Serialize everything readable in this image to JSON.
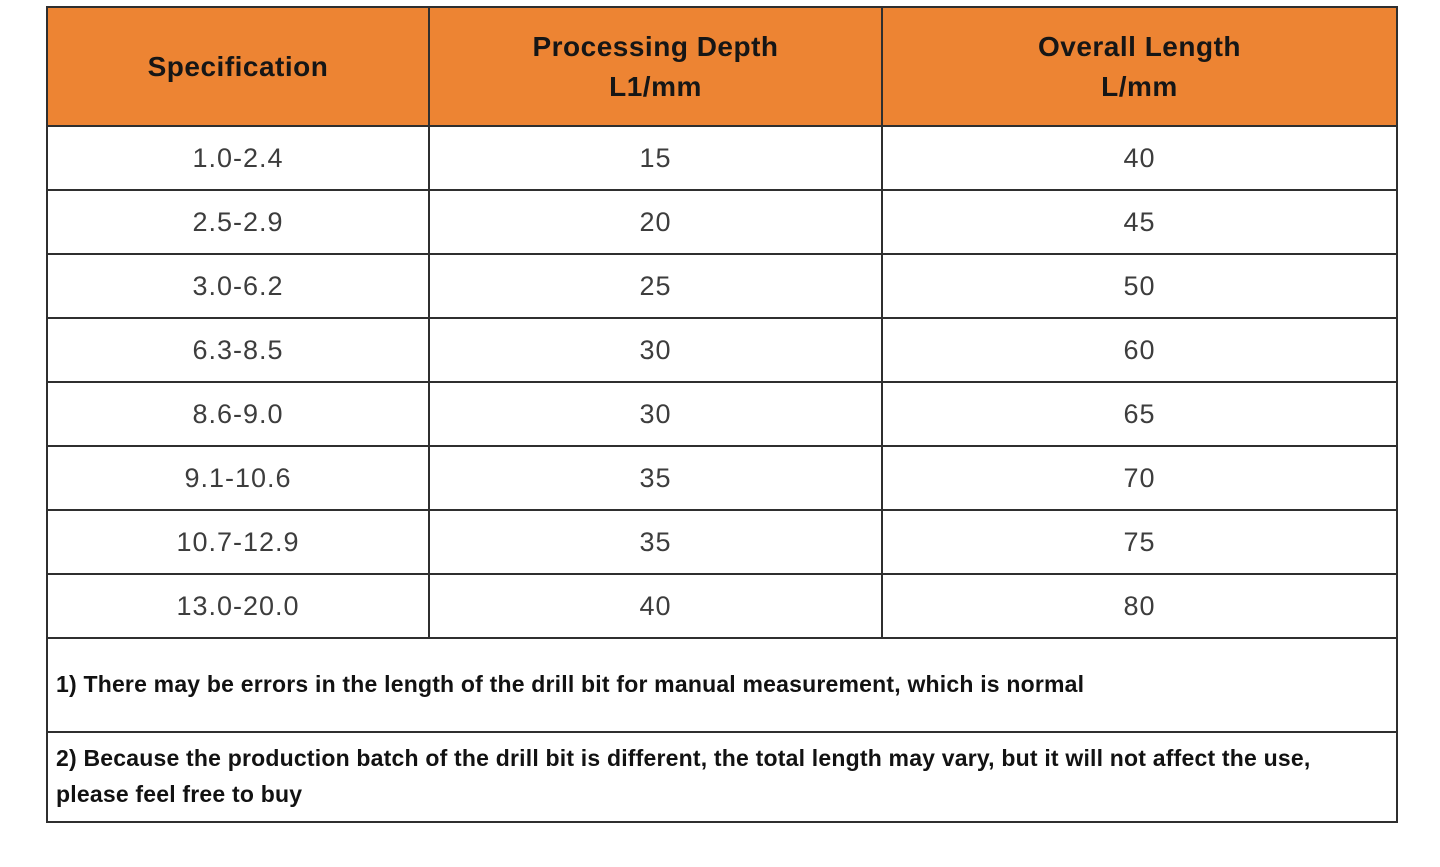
{
  "colors": {
    "header_background": "#ed8433",
    "header_text": "#161616",
    "cell_text": "#3d3d3d",
    "note_text": "#121212",
    "border": "#2f2f2f",
    "page_background": "#ffffff"
  },
  "table": {
    "headers": [
      "Specification",
      "Processing Depth\nL1/mm",
      "Overall Length\nL/mm"
    ],
    "rows": [
      [
        "1.0-2.4",
        "15",
        "40"
      ],
      [
        "2.5-2.9",
        "20",
        "45"
      ],
      [
        "3.0-6.2",
        "25",
        "50"
      ],
      [
        "6.3-8.5",
        "30",
        "60"
      ],
      [
        "8.6-9.0",
        "30",
        "65"
      ],
      [
        "9.1-10.6",
        "35",
        "70"
      ],
      [
        "10.7-12.9",
        "35",
        "75"
      ],
      [
        "13.0-20.0",
        "40",
        "80"
      ]
    ]
  },
  "notes": [
    "1) There may be errors in the length of the drill bit for manual measurement, which is normal",
    "2) Because the production batch of the drill bit is different, the total length may vary, but it will not affect the use, please feel free to buy"
  ]
}
